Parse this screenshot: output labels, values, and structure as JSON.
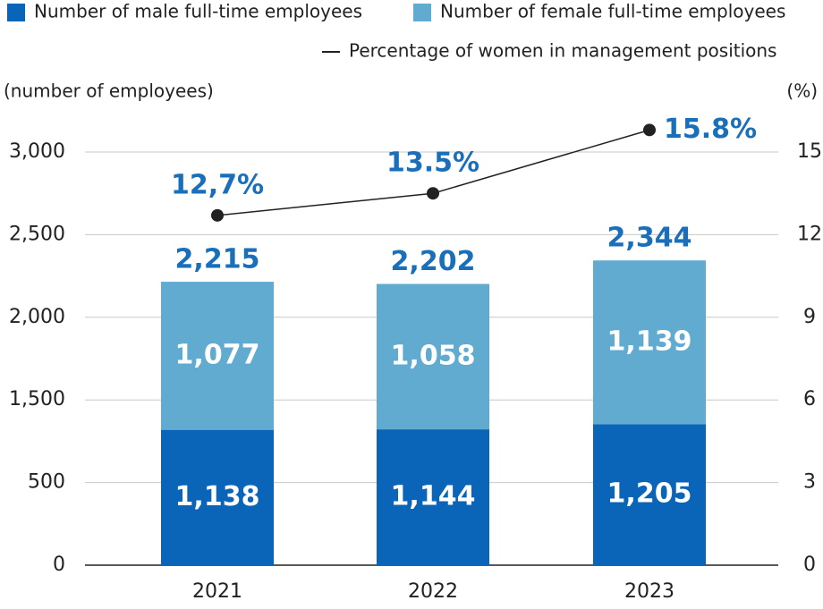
{
  "chart_data": {
    "type": "bar",
    "stacked": true,
    "axis_label": "(number of employees)",
    "y2_axis_label": "(%)",
    "categories": [
      "2021",
      "2022",
      "2023"
    ],
    "series": [
      {
        "name": "Number of male full-time employees",
        "color": "#0a64b8",
        "values": [
          1138,
          1144,
          1205
        ],
        "value_labels": [
          "1,138",
          "1,144",
          "1,205"
        ]
      },
      {
        "name": "Number of female full-time employees",
        "color": "#62abd0",
        "values": [
          1077,
          1058,
          1139
        ],
        "value_labels": [
          "1,077",
          "1,058",
          "1,139"
        ]
      },
      {
        "name": "Percentage of women in management positions",
        "type": "line",
        "axis": "y2",
        "color": "#222222",
        "values": [
          12.7,
          13.5,
          15.8
        ],
        "value_labels": [
          "12,7%",
          "13.5%",
          "15.8%"
        ]
      }
    ],
    "totals": [
      2215,
      2202,
      2344
    ],
    "total_labels": [
      "2,215",
      "2,202",
      "2,344"
    ],
    "ylim": [
      0,
      3000
    ],
    "yticks": [
      0,
      500,
      {
        "value": 1500,
        "label": "1,500"
      },
      {
        "value": 2000,
        "label": "2,000"
      },
      {
        "value": 2500,
        "label": "2,500"
      },
      {
        "value": 3000,
        "label": "3,000"
      }
    ],
    "y2lim": [
      0,
      15
    ],
    "y2ticks": [
      0,
      3,
      6,
      9,
      12,
      15
    ],
    "grid": true
  }
}
